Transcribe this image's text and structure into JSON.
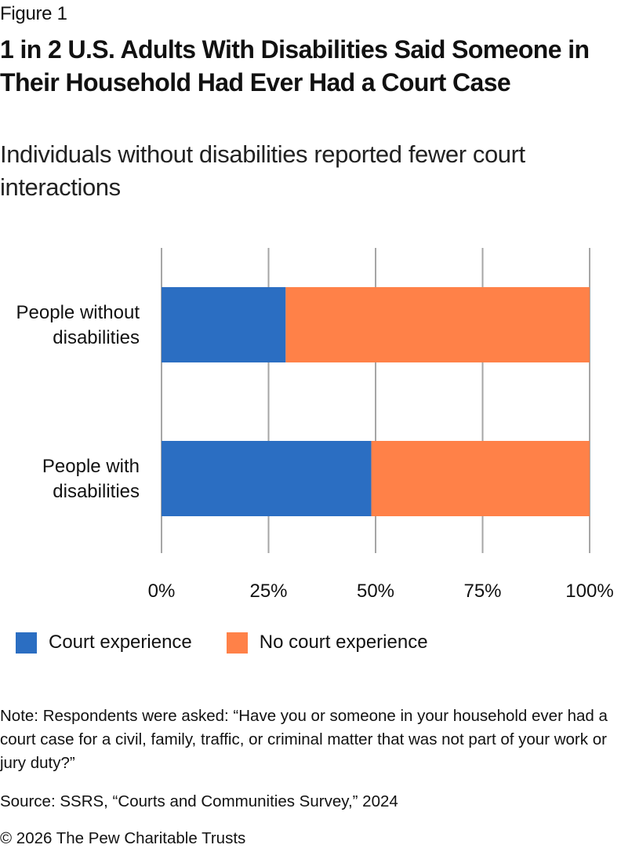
{
  "header": {
    "figure_label": "Figure 1",
    "title": "1 in 2 U.S. Adults With Disabilities Said Someone in Their Household Had Ever Had a Court Case",
    "subtitle": "Individuals without disabilities reported fewer court interactions"
  },
  "chart_data": {
    "type": "bar",
    "orientation": "horizontal",
    "stacked": true,
    "title": "1 in 2 U.S. Adults With Disabilities Said Someone in Their Household Had Ever Had a Court Case",
    "subtitle": "Individuals without disabilities reported fewer court interactions",
    "categories": [
      "People without disabilities",
      "People with disabilities"
    ],
    "category_lines": [
      [
        "People without",
        "disabilities"
      ],
      [
        "People with",
        "disabilities"
      ]
    ],
    "series": [
      {
        "name": "Court experience",
        "color": "#2b6ec2",
        "values": [
          29,
          49
        ]
      },
      {
        "name": "No court experience",
        "color": "#ff8148",
        "values": [
          71,
          51
        ]
      }
    ],
    "xlabel": "",
    "ylabel": "",
    "xlim": [
      0,
      100
    ],
    "x_ticks": [
      0,
      25,
      50,
      75,
      100
    ],
    "x_tick_labels": [
      "0%",
      "25%",
      "50%",
      "75%",
      "100%"
    ],
    "grid": true,
    "grid_color": "#a6a6a6",
    "legend_position": "bottom-left"
  },
  "legend": {
    "items": [
      {
        "label": "Court experience",
        "color": "#2b6ec2"
      },
      {
        "label": "No court experience",
        "color": "#ff8148"
      }
    ]
  },
  "footer": {
    "note": "Note: Respondents were asked: “Have you or someone in your household ever had a court case for a civil, family, traffic, or criminal matter that was not part of your work or jury duty?”",
    "source": "Source: SSRS, “Courts and Communities Survey,” 2024",
    "copyright": "© 2026 The Pew Charitable Trusts"
  }
}
